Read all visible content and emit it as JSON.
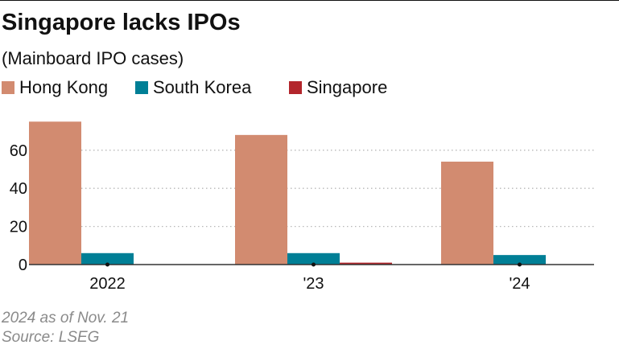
{
  "title": "Singapore lacks IPOs",
  "subtitle": "(Mainboard IPO cases)",
  "colors": {
    "hong_kong": "#d28b70",
    "south_korea": "#007f96",
    "singapore": "#b3262c",
    "grid": "#b8b8b8",
    "axis": "#333333",
    "note": "#8a8a8a"
  },
  "chart_data": {
    "type": "bar",
    "title": "Singapore lacks IPOs",
    "subtitle": "(Mainboard IPO cases)",
    "xlabel": "",
    "ylabel": "",
    "categories": [
      "2022",
      "'23",
      "'24"
    ],
    "series": [
      {
        "name": "Hong Kong",
        "color": "#d28b70",
        "values": [
          75,
          68,
          54
        ]
      },
      {
        "name": "South Korea",
        "color": "#007f96",
        "values": [
          6,
          6,
          5
        ]
      },
      {
        "name": "Singapore",
        "color": "#b3262c",
        "values": [
          0,
          1,
          0
        ]
      }
    ],
    "ylim": [
      0,
      75
    ],
    "yticks": [
      0,
      20,
      40,
      60
    ],
    "grid": true,
    "legend_position": "top-left"
  },
  "notes": {
    "line1": "2024 as of Nov. 21",
    "line2": "Source: LSEG"
  }
}
